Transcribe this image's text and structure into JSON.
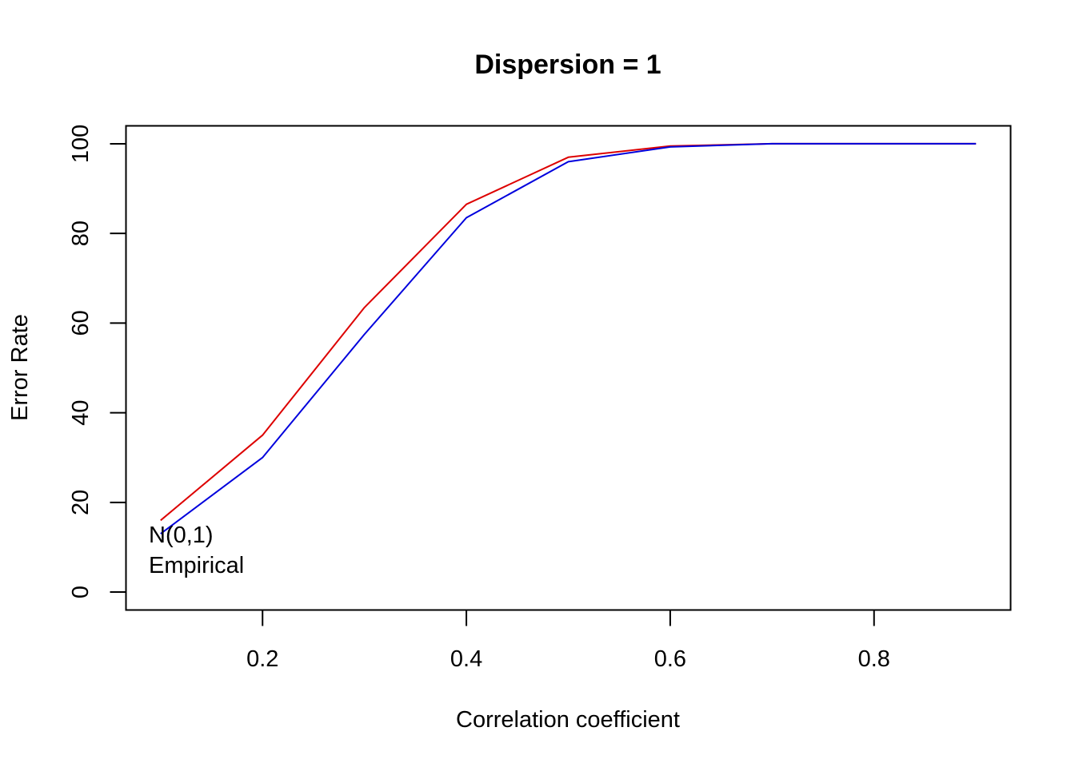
{
  "chart_data": {
    "type": "line",
    "title": "Dispersion = 1",
    "xlabel": "Correlation coefficient",
    "ylabel": "Error Rate",
    "xlim": [
      0.066,
      0.934
    ],
    "ylim": [
      -4,
      104
    ],
    "xticks": [
      "0.2",
      "0.4",
      "0.6",
      "0.8"
    ],
    "yticks": [
      "0",
      "20",
      "40",
      "60",
      "80",
      "100"
    ],
    "grid": false,
    "legend": {
      "placement": "bottom-left",
      "entries": [
        "N(0,1)",
        "Empirical"
      ]
    },
    "x": [
      0.1,
      0.2,
      0.3,
      0.4,
      0.5,
      0.6,
      0.7,
      0.8,
      0.9
    ],
    "series": [
      {
        "name": "N(0,1)",
        "color": "#dd0000",
        "values": [
          16,
          35,
          63.5,
          86.5,
          97,
          99.5,
          100,
          100,
          100
        ]
      },
      {
        "name": "Empirical",
        "color": "#0000dd",
        "values": [
          13,
          30,
          57.5,
          83.5,
          96,
          99.3,
          100,
          100,
          100
        ]
      }
    ]
  }
}
